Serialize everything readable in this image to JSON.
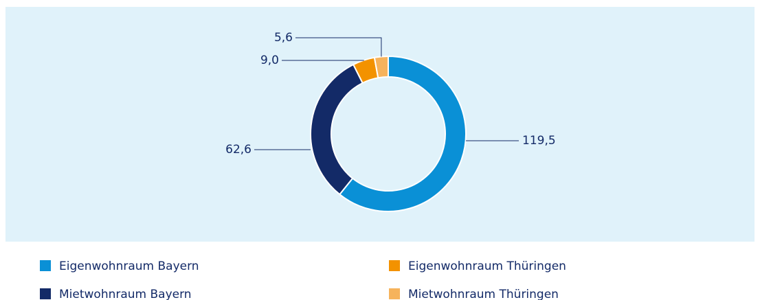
{
  "chart_data": {
    "type": "donut",
    "categories": [
      "Eigenwohnraum Bayern",
      "Mietwohnraum Bayern",
      "Eigenwohnraum Thüringen",
      "Mietwohnraum Thüringen"
    ],
    "values": [
      119.5,
      62.6,
      9.0,
      5.6
    ],
    "value_labels": [
      "119,5",
      "62,6",
      "9,0",
      "5,6"
    ],
    "colors": [
      "#0a90d6",
      "#132a67",
      "#f39200",
      "#f6b35c"
    ]
  }
}
